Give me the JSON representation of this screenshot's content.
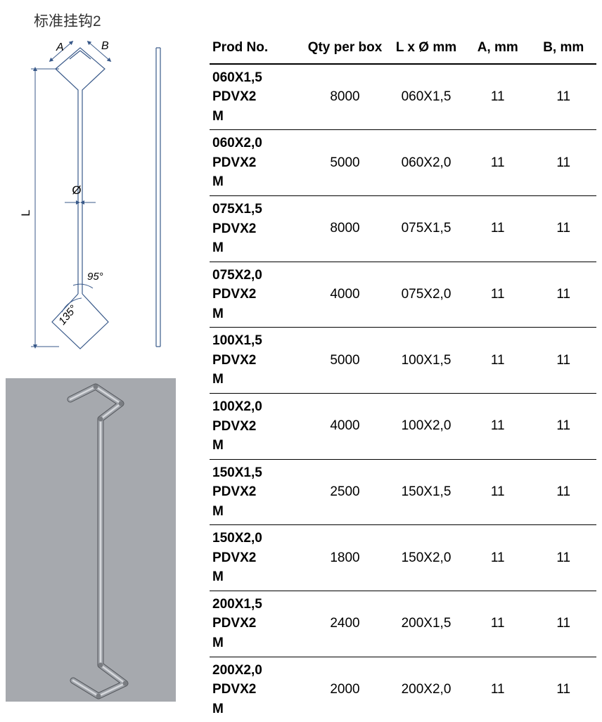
{
  "title": "标准挂钩2",
  "diagram": {
    "label_A": "A",
    "label_B": "B",
    "label_L": "L",
    "label_diameter": "Ø",
    "angle_95": "95°",
    "angle_135": "135°",
    "line_color": "#3a5a8a",
    "dim_color": "#3a5a8a",
    "bg_gray": "#a6a9ae",
    "hook_color": "#8e9299"
  },
  "table": {
    "headers": {
      "prod": "Prod No.",
      "qty": "Qty per box",
      "lxd": "L x Ø mm",
      "a": "A, mm",
      "b": "B, mm"
    },
    "rows": [
      {
        "prod": "060X1,5\nPDVX2\nM",
        "qty": "8000",
        "lxd": "060X1,5",
        "a": "11",
        "b": "11"
      },
      {
        "prod": "060X2,0\nPDVX2\nM",
        "qty": "5000",
        "lxd": "060X2,0",
        "a": "11",
        "b": "11"
      },
      {
        "prod": "075X1,5\nPDVX2\nM",
        "qty": "8000",
        "lxd": "075X1,5",
        "a": "11",
        "b": "11"
      },
      {
        "prod": "075X2,0\nPDVX2\nM",
        "qty": "4000",
        "lxd": "075X2,0",
        "a": "11",
        "b": "11"
      },
      {
        "prod": "100X1,5\nPDVX2\nM",
        "qty": "5000",
        "lxd": "100X1,5",
        "a": "11",
        "b": "11"
      },
      {
        "prod": "100X2,0\nPDVX2\nM",
        "qty": "4000",
        "lxd": "100X2,0",
        "a": "11",
        "b": "11"
      },
      {
        "prod": "150X1,5\nPDVX2\nM",
        "qty": "2500",
        "lxd": "150X1,5",
        "a": "11",
        "b": "11"
      },
      {
        "prod": "150X2,0\nPDVX2\nM",
        "qty": "1800",
        "lxd": "150X2,0",
        "a": "11",
        "b": "11"
      },
      {
        "prod": "200X1,5\nPDVX2\nM",
        "qty": "2400",
        "lxd": "200X1,5",
        "a": "11",
        "b": "11"
      },
      {
        "prod": "200X2,0\nPDVX2\nM",
        "qty": "2000",
        "lxd": "200X2,0",
        "a": "11",
        "b": "11"
      }
    ]
  }
}
